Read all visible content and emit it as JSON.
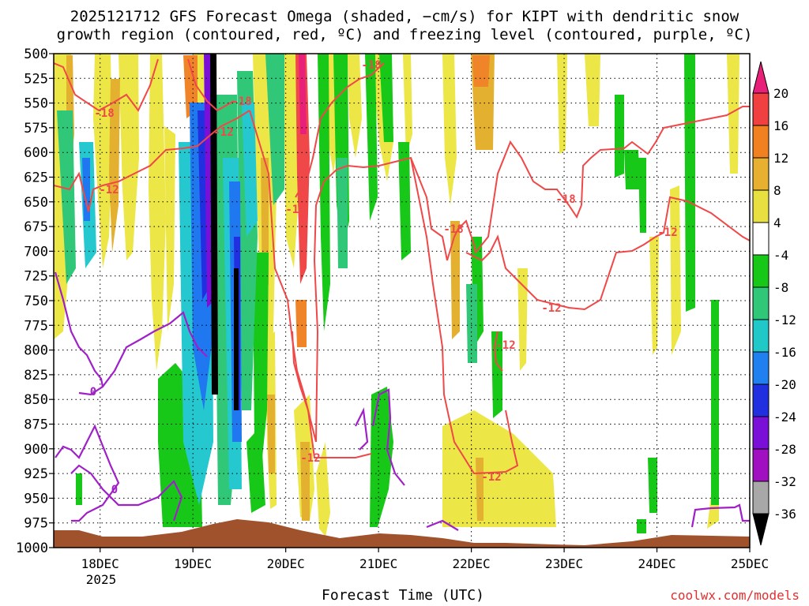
{
  "chart_data": {
    "type": "heatmap",
    "title_lines": [
      "2025121712 GFS Forecast Omega (shaded, −cm/s) for KIPT with dendritic snow",
      "growth region (contoured, red, ºC) and freezing level (contoured, purple, ºC)"
    ],
    "xlabel": "Forecast Time (UTC)",
    "ylabel": "",
    "credit": "coolwx.com/models",
    "y_axis": {
      "unit": "hPa",
      "ticks": [
        500,
        525,
        550,
        575,
        600,
        625,
        650,
        675,
        700,
        725,
        750,
        775,
        800,
        825,
        850,
        875,
        900,
        925,
        950,
        975,
        1000
      ],
      "ylim": [
        1000,
        500
      ]
    },
    "x_axis": {
      "ticks": [
        "18DEC",
        "19DEC",
        "20DEC",
        "21DEC",
        "22DEC",
        "23DEC",
        "24DEC",
        "25DEC"
      ],
      "year_label": "2025",
      "xlim_days": [
        17.5,
        25.0
      ]
    },
    "grid": true,
    "colorbar": {
      "ticks": [
        20,
        16,
        12,
        8,
        4,
        -4,
        -8,
        -12,
        -16,
        -20,
        -24,
        -28,
        -32,
        -36
      ],
      "colors": [
        "#e8207a",
        "#f04040",
        "#f08020",
        "#e8b030",
        "#e8e040",
        "#ffffff",
        "#18c818",
        "#30c878",
        "#20c8c8",
        "#2080f0",
        "#2030e0",
        "#7a10d8",
        "#a010c0",
        "#a8a8a8",
        "#000000"
      ]
    },
    "contours": {
      "dendritic_labels": [
        "-18",
        "-12",
        "-18",
        "-12",
        "-18",
        "-12",
        "-18",
        "-12",
        "-12",
        "-12",
        "-12",
        "-18",
        "-12"
      ],
      "freezing_labels": [
        "0",
        "0"
      ]
    },
    "colors": {
      "dendritic": "#f04848",
      "freezing": "#a020c8",
      "terrain": "#a0522d"
    }
  }
}
